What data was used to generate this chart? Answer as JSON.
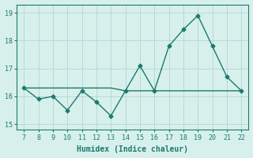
{
  "x": [
    7,
    8,
    9,
    10,
    11,
    12,
    13,
    14,
    15,
    16,
    17,
    18,
    19,
    20,
    21,
    22
  ],
  "y": [
    16.3,
    15.9,
    16.0,
    15.5,
    16.2,
    15.8,
    15.3,
    16.2,
    17.1,
    16.2,
    17.8,
    18.4,
    18.9,
    17.8,
    16.7,
    16.2
  ],
  "y_hline": [
    16.3,
    16.3,
    16.3,
    16.3,
    16.3,
    16.3,
    16.3,
    16.2,
    16.2,
    16.2,
    16.2,
    16.2,
    16.2,
    16.2,
    16.2,
    16.2
  ],
  "xlabel": "Humidex (Indice chaleur)",
  "xlim": [
    6.5,
    22.5
  ],
  "ylim": [
    14.8,
    19.3
  ],
  "yticks": [
    15,
    16,
    17,
    18,
    19
  ],
  "xticks": [
    7,
    8,
    9,
    10,
    11,
    12,
    13,
    14,
    15,
    16,
    17,
    18,
    19,
    20,
    21,
    22
  ],
  "line_color": "#1a7a6e",
  "bg_color": "#d8f0ec",
  "grid_color": "#b0d8d4"
}
